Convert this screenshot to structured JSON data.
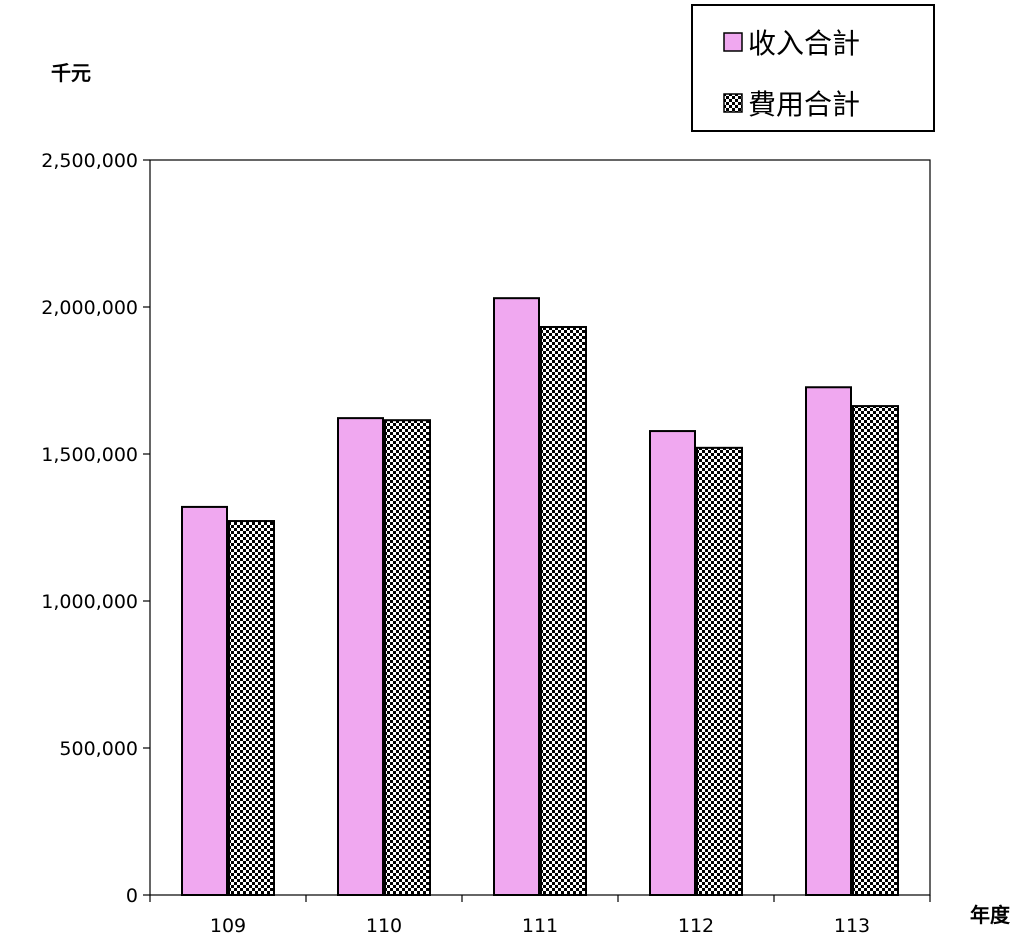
{
  "chart_data": {
    "type": "bar",
    "ylabel": "千元",
    "xlabel": "年度",
    "categories": [
      "109",
      "110",
      "111",
      "112",
      "113"
    ],
    "series": [
      {
        "name": "收入合計",
        "values": [
          1320000,
          1622000,
          2030000,
          1578000,
          1727000
        ],
        "color": "#f0a8f0",
        "fill": "solid"
      },
      {
        "name": "費用合計",
        "values": [
          1272000,
          1615000,
          1932000,
          1521000,
          1663000
        ],
        "color": "#000000",
        "fill": "checker"
      }
    ],
    "ylim": [
      0,
      2500000
    ],
    "yticks": [
      0,
      500000,
      1000000,
      1500000,
      2000000,
      2500000
    ],
    "ytick_labels": [
      "0",
      "500,000",
      "1,000,000",
      "1,500,000",
      "2,000,000",
      "2,500,000"
    ],
    "grid": false,
    "legend_position": "top-right"
  },
  "legend_markers": {
    "solid": "□",
    "checker": "▩"
  }
}
